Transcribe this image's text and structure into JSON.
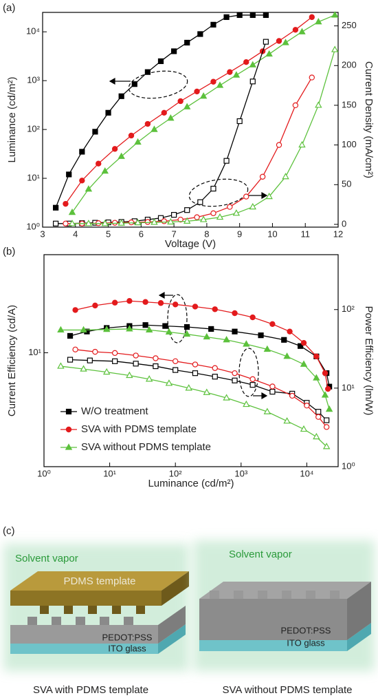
{
  "chart_data": [
    {
      "type": "line",
      "label": "(a)",
      "x_label": "Voltage (V)",
      "y_label": "Luminance (cd/m²)",
      "y2_label": "Current Density (mA/cm²)",
      "xlim": [
        3,
        12
      ],
      "xticks": [
        3,
        4,
        5,
        6,
        7,
        8,
        9,
        10,
        11,
        12
      ],
      "ylim": [
        1,
        25000
      ],
      "ylog": true,
      "yticks": [
        {
          "value": 1,
          "label": "10⁰"
        },
        {
          "value": 10,
          "label": "10¹"
        },
        {
          "value": 100,
          "label": "10²"
        },
        {
          "value": 1000,
          "label": "10³"
        },
        {
          "value": 10000,
          "label": "10⁴"
        }
      ],
      "y2lim": [
        -3.5,
        267
      ],
      "y2ticks": [
        0,
        50,
        100,
        150,
        200,
        250
      ],
      "series": [
        {
          "color": "#000000",
          "marker": "square",
          "filled": true,
          "x": [
            3.4,
            3.8,
            4.2,
            4.6,
            5.0,
            5.4,
            5.8,
            6.2,
            6.6,
            7.0,
            7.4,
            7.8,
            8.2,
            8.6,
            9.0,
            9.4,
            9.8
          ],
          "values": [
            2.5,
            12,
            35,
            90,
            220,
            480,
            850,
            1500,
            2500,
            4000,
            6000,
            9000,
            14000,
            20000,
            22000,
            22000,
            22000
          ]
        },
        {
          "color": "#e31a1c",
          "marker": "circle",
          "filled": true,
          "x": [
            3.7,
            4.2,
            4.7,
            5.2,
            5.7,
            6.2,
            6.7,
            7.2,
            7.7,
            8.2,
            8.7,
            9.2,
            9.7,
            10.2,
            10.7,
            11.2
          ],
          "values": [
            3,
            9,
            20,
            40,
            75,
            130,
            220,
            380,
            600,
            950,
            1500,
            2400,
            4000,
            6500,
            11000,
            20000
          ]
        },
        {
          "color": "#5cc13c",
          "marker": "triangle",
          "filled": true,
          "x": [
            3.9,
            4.4,
            4.9,
            5.4,
            5.9,
            6.4,
            6.9,
            7.4,
            7.9,
            8.4,
            8.9,
            9.4,
            9.9,
            10.4,
            10.9,
            11.4,
            11.9
          ],
          "values": [
            2,
            6,
            14,
            28,
            55,
            100,
            170,
            290,
            480,
            800,
            1300,
            2100,
            3500,
            6000,
            10000,
            16000,
            22000
          ]
        },
        {
          "color": "#000000",
          "marker": "square",
          "filled": false,
          "axis": "y2",
          "x": [
            3.4,
            3.8,
            4.2,
            4.6,
            5.0,
            5.4,
            5.8,
            6.2,
            6.6,
            7.0,
            7.4,
            7.8,
            8.2,
            8.6,
            9.0,
            9.4,
            9.8
          ],
          "values": [
            1,
            1,
            1.5,
            2,
            2.5,
            3,
            4,
            6,
            8,
            12,
            18,
            28,
            45,
            80,
            130,
            180,
            230
          ]
        },
        {
          "color": "#e31a1c",
          "marker": "circle",
          "filled": false,
          "axis": "y2",
          "x": [
            3.7,
            4.2,
            4.7,
            5.2,
            5.7,
            6.2,
            6.7,
            7.2,
            7.7,
            8.2,
            8.7,
            9.2,
            9.7,
            10.2,
            10.7,
            11.2
          ],
          "values": [
            1,
            1,
            1.5,
            2,
            2.5,
            3,
            4,
            6,
            9,
            14,
            22,
            35,
            60,
            100,
            150,
            185
          ]
        },
        {
          "color": "#5cc13c",
          "marker": "triangle",
          "filled": false,
          "axis": "y2",
          "x": [
            3.9,
            4.4,
            4.9,
            5.4,
            5.9,
            6.4,
            6.9,
            7.4,
            7.9,
            8.4,
            8.9,
            9.4,
            9.9,
            10.4,
            10.9,
            11.4,
            11.9
          ],
          "values": [
            1,
            1,
            1,
            1.5,
            2,
            2.5,
            3,
            4,
            6,
            9,
            14,
            22,
            35,
            60,
            100,
            150,
            220
          ]
        }
      ]
    },
    {
      "type": "line",
      "label": "(b)",
      "x_label": "Luminance (cd/m²)",
      "y_label": "Current Efficiency (cd/A)",
      "y2_label": "Power Efficiency (lm/W)",
      "xlim": [
        1,
        30000
      ],
      "xlog": true,
      "xticks": [
        {
          "value": 1,
          "label": "10⁰"
        },
        {
          "value": 10,
          "label": "10¹"
        },
        {
          "value": 100,
          "label": "10²"
        },
        {
          "value": 1000,
          "label": "10³"
        },
        {
          "value": 10000,
          "label": "10⁴"
        }
      ],
      "ylim": [
        2,
        40
      ],
      "ylog": true,
      "yticks": [
        {
          "value": 10,
          "label": "10¹"
        }
      ],
      "y2lim": [
        1,
        500
      ],
      "y2log": true,
      "y2ticks": [
        {
          "value": 1,
          "label": "10⁰"
        },
        {
          "value": 10,
          "label": "10¹"
        },
        {
          "value": 100,
          "label": "10²"
        }
      ],
      "legend": "lower-left",
      "series": [
        {
          "name": "W/O treatment",
          "color": "#000000",
          "marker": "square",
          "filled": true,
          "x": [
            2.5,
            4.5,
            9,
            20,
            35,
            70,
            150,
            350,
            800,
            2000,
            4500,
            8000,
            14000,
            20000,
            22000
          ],
          "values": [
            12.7,
            13.5,
            14.2,
            14.6,
            14.8,
            14.6,
            14.4,
            14,
            13.5,
            12.8,
            12,
            11,
            9.5,
            7.5,
            6.2
          ]
        },
        {
          "name": "SVA with PDMS template",
          "color": "#e31a1c",
          "marker": "circle",
          "filled": true,
          "x": [
            3,
            6,
            12,
            20,
            35,
            60,
            100,
            200,
            400,
            800,
            1500,
            3000,
            5500,
            9000,
            14000,
            19000,
            21000
          ],
          "values": [
            18.3,
            19.5,
            20.3,
            20.8,
            20.5,
            20.2,
            19.8,
            19.2,
            18.5,
            17.5,
            16.5,
            15,
            13.5,
            11.5,
            9.5,
            7.5,
            6
          ]
        },
        {
          "name": "SVA without PDMS template",
          "color": "#5cc13c",
          "marker": "triangle",
          "filled": true,
          "x": [
            1.8,
            4,
            9,
            20,
            40,
            80,
            150,
            300,
            600,
            1200,
            2500,
            5000,
            9000,
            14000,
            19000,
            22000
          ],
          "values": [
            13.8,
            13.8,
            13.9,
            14,
            13.8,
            13.4,
            13,
            12.5,
            12,
            11.3,
            10.5,
            9.5,
            8.5,
            7,
            5.5,
            4.5
          ]
        },
        {
          "color": "#000000",
          "marker": "square",
          "filled": false,
          "axis": "y2",
          "x": [
            2.5,
            5,
            12,
            25,
            50,
            100,
            200,
            400,
            800,
            1500,
            3000,
            6000,
            10000,
            15000,
            20000
          ],
          "values": [
            23,
            22.5,
            22,
            20.5,
            19,
            17,
            15.5,
            14,
            12.5,
            11,
            9,
            8.5,
            6.5,
            5,
            3.9
          ]
        },
        {
          "color": "#e31a1c",
          "marker": "circle",
          "filled": false,
          "axis": "y2",
          "x": [
            3,
            6,
            12,
            25,
            50,
            100,
            200,
            400,
            800,
            1500,
            3000,
            6000,
            10000,
            15000,
            20000
          ],
          "values": [
            31,
            29,
            28,
            26,
            24,
            22,
            20,
            18,
            15.5,
            13,
            10.5,
            8,
            6,
            4.3,
            3.2
          ]
        },
        {
          "color": "#5cc13c",
          "marker": "triangle",
          "filled": false,
          "axis": "y2",
          "x": [
            1.8,
            4,
            9,
            20,
            40,
            80,
            160,
            300,
            600,
            1200,
            2500,
            5000,
            9000,
            14000,
            20000
          ],
          "values": [
            19,
            17.5,
            16,
            14.5,
            13,
            11.5,
            10,
            8.8,
            7.5,
            6.2,
            5,
            3.8,
            3,
            2.4,
            1.8
          ]
        }
      ]
    }
  ],
  "diagram": {
    "label": "(c)",
    "left": {
      "vapor": "Solvent vapor",
      "template": "PDMS template",
      "layer": "PEDOT:PSS",
      "substrate": "ITO glass",
      "caption": "SVA with PDMS template"
    },
    "right": {
      "vapor": "Solvent vapor",
      "layer": "PEDOT:PSS",
      "substrate": "ITO glass",
      "caption": "SVA without PDMS template"
    }
  }
}
